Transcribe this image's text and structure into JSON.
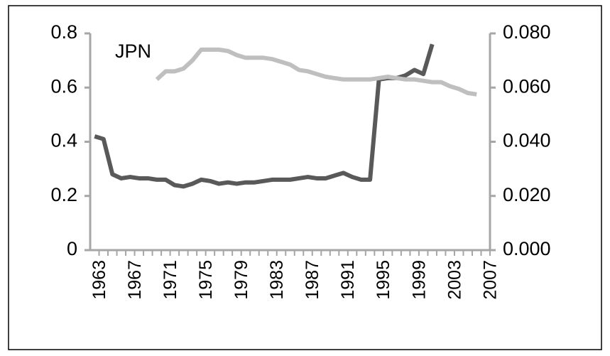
{
  "chart_data": {
    "type": "line",
    "annotation": "JPN",
    "categories": [
      "1963",
      null,
      null,
      null,
      "1967",
      null,
      null,
      null,
      "1971",
      null,
      null,
      null,
      "1975",
      null,
      null,
      null,
      "1979",
      null,
      null,
      null,
      "1983",
      null,
      null,
      null,
      "1987",
      null,
      null,
      null,
      "1991",
      null,
      null,
      null,
      "1995",
      null,
      null,
      null,
      "1999",
      null,
      null,
      null,
      "2003",
      null,
      null,
      null,
      "2007"
    ],
    "series": [
      {
        "color": "#595959",
        "axis": "y",
        "values": [
          0.42,
          0.41,
          0.28,
          0.265,
          0.27,
          0.265,
          0.265,
          0.26,
          0.26,
          0.24,
          0.235,
          0.245,
          0.26,
          0.255,
          0.245,
          0.25,
          0.245,
          0.25,
          0.25,
          0.255,
          0.26,
          0.26,
          0.26,
          0.265,
          0.27,
          0.265,
          0.265,
          0.275,
          0.285,
          0.27,
          0.26,
          0.26,
          0.63,
          0.635,
          0.635,
          0.645,
          0.665,
          0.65,
          0.76,
          null,
          null,
          null,
          null,
          null,
          null
        ]
      },
      {
        "color": "#bfbfbf",
        "axis": "y2",
        "values": [
          null,
          null,
          null,
          null,
          null,
          null,
          null,
          0.063,
          0.066,
          0.066,
          0.067,
          0.07,
          0.074,
          0.074,
          0.074,
          0.0735,
          0.072,
          0.071,
          0.071,
          0.071,
          0.0705,
          0.0695,
          0.0685,
          0.0665,
          0.066,
          0.065,
          0.064,
          0.0635,
          0.063,
          0.063,
          0.063,
          0.063,
          0.0635,
          0.064,
          0.0635,
          0.063,
          0.063,
          0.0625,
          0.062,
          0.062,
          0.0605,
          0.0595,
          0.058,
          0.0575,
          null
        ]
      }
    ],
    "ylim": [
      0,
      0.8
    ],
    "yticks": [
      0,
      0.2,
      0.4,
      0.6,
      0.8
    ],
    "y2lim": [
      0,
      0.08
    ],
    "y2ticks": [
      {
        "value": 0,
        "label": "0.000"
      },
      {
        "value": 0.02,
        "label": "0.020"
      },
      {
        "value": 0.04,
        "label": "0.040"
      },
      {
        "value": 0.06,
        "label": "0.060"
      },
      {
        "value": 0.08,
        "label": "0.080"
      }
    ],
    "grid": false
  }
}
